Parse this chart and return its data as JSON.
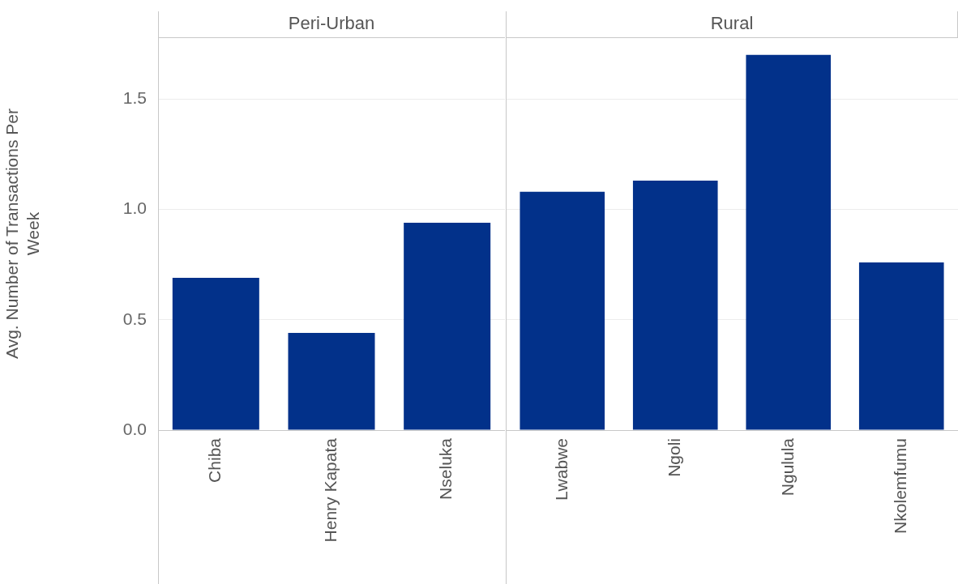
{
  "chart_data": [
    {
      "type": "bar",
      "title": "Peri-Urban",
      "ylabel": "Avg. Number of Transactions Per Week",
      "categories": [
        "Chiba",
        "Henry Kapata",
        "Nseluka"
      ],
      "values": [
        0.69,
        0.44,
        0.94
      ],
      "color": "#02318a",
      "ylim": [
        0,
        1.78
      ],
      "yticks": [
        {
          "value": 0,
          "label": "0.0"
        },
        {
          "value": 0.5,
          "label": "0.5"
        },
        {
          "value": 1,
          "label": "1.0"
        },
        1.5
      ],
      "grid": "y",
      "legend": false
    },
    {
      "type": "bar",
      "title": "Rural",
      "categories": [
        "Lwabwe",
        "Ngoli",
        "Ngulula",
        "Nkolemfumu"
      ],
      "values": [
        1.08,
        1.13,
        1.7,
        0.76
      ],
      "color": "#02318a",
      "ylim": [
        0,
        1.78
      ],
      "yticks": [
        0,
        0.5,
        1,
        1.5
      ],
      "grid": "y",
      "legend": false,
      "tick_labels": "x"
    }
  ]
}
